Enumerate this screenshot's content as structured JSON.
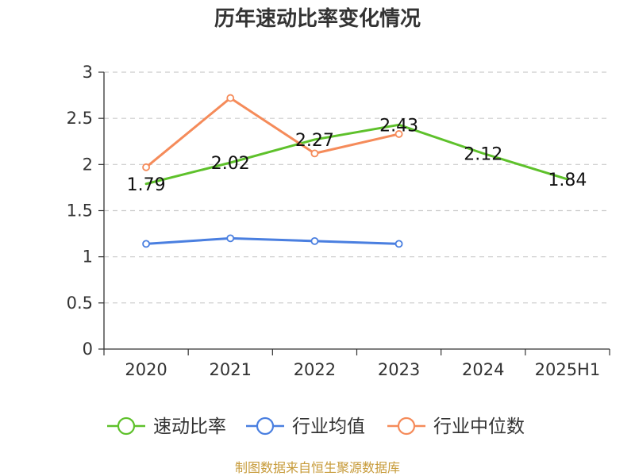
{
  "chart_data": {
    "type": "line",
    "title": "历年速动比率变化情况",
    "categories": [
      "2020",
      "2021",
      "2022",
      "2023",
      "2024",
      "2025H1"
    ],
    "ylim": [
      0,
      3
    ],
    "yticks": [
      "0",
      "0.5",
      "1",
      "1.5",
      "2",
      "2.5",
      "3"
    ],
    "ytick_values": [
      0,
      0.5,
      1,
      1.5,
      2,
      2.5,
      3
    ],
    "grid": "horizontal dashed",
    "legend_position": "bottom",
    "series": [
      {
        "name": "速动比率",
        "color": "#5ec12b",
        "values": [
          1.79,
          2.02,
          2.27,
          2.43,
          2.12,
          1.84
        ],
        "labels": [
          "1.79",
          "2.02",
          "2.27",
          "2.43",
          "2.12",
          "1.84"
        ],
        "show_markers": false
      },
      {
        "name": "行业均值",
        "color": "#4a7fe0",
        "values": [
          1.14,
          1.2,
          1.17,
          1.14,
          null,
          null
        ],
        "show_markers": true
      },
      {
        "name": "行业中位数",
        "color": "#f58b5a",
        "values": [
          1.97,
          2.72,
          2.12,
          2.33,
          null,
          null
        ],
        "show_markers": true
      }
    ]
  },
  "source": "制图数据来自恒生聚源数据库"
}
